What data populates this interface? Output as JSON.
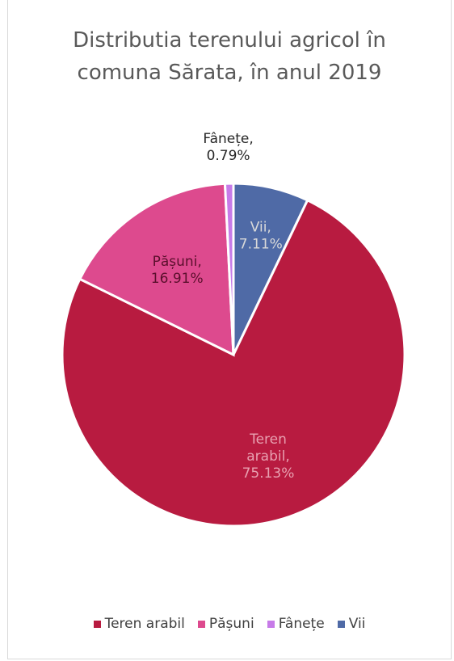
{
  "chart_data": {
    "type": "pie",
    "title_lines": [
      "Distributia terenului agricol în",
      "comuna Sărata, în anul 2019"
    ],
    "slices": [
      {
        "name": "Vii",
        "value": 7.11,
        "color": "#4f6aa6",
        "label_lines": [
          "Vii,",
          "7.11%"
        ],
        "label_color": "#d9d9d9"
      },
      {
        "name": "Teren arabil",
        "value": 75.13,
        "color": "#b81b40",
        "label_lines": [
          "Teren",
          "arabil,",
          "75.13%"
        ],
        "label_color": "#e8a0b0"
      },
      {
        "name": "Pășuni",
        "value": 16.91,
        "color": "#dd4a8e",
        "label_lines": [
          "Pășuni,",
          "16.91%"
        ],
        "label_color": "#5a0f2c"
      },
      {
        "name": "Fânețe",
        "value": 0.79,
        "color": "#c77be8",
        "label_lines": [
          "Fânețe,",
          "0.79%"
        ],
        "label_color": "#262626"
      }
    ],
    "legend": [
      "Teren arabil",
      "Pășuni",
      "Fânețe",
      "Vii"
    ],
    "legend_position": "bottom"
  }
}
